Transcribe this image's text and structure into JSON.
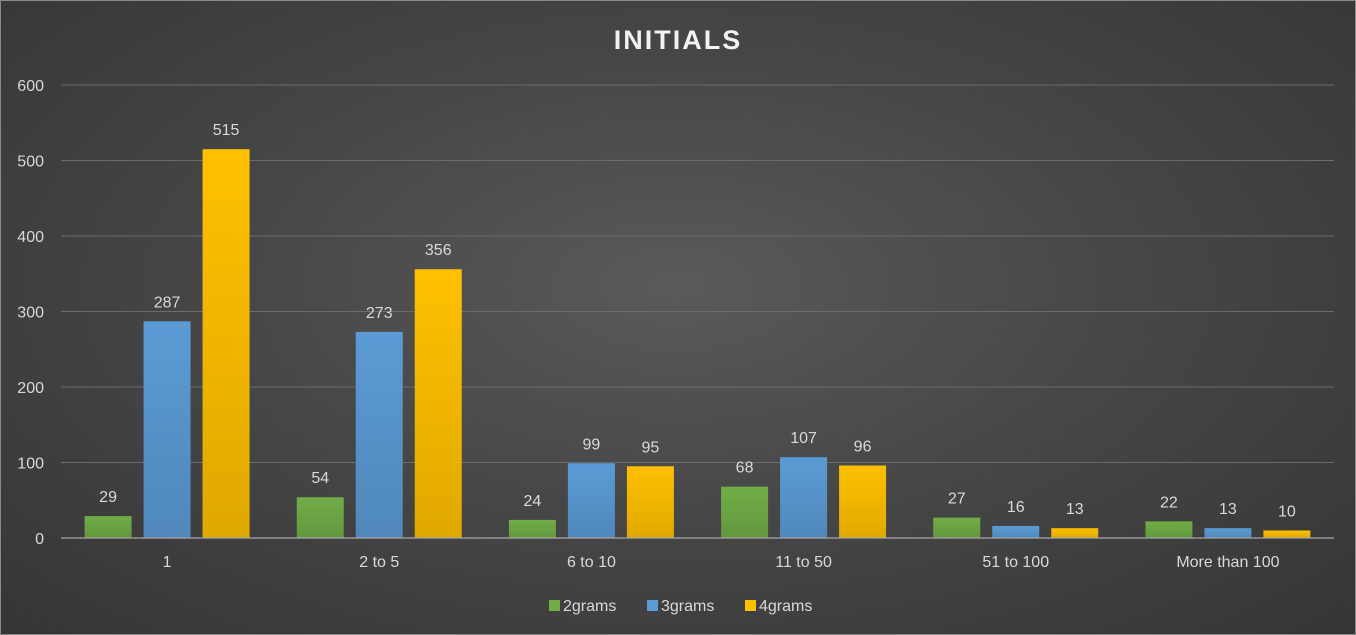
{
  "chart_data": {
    "type": "bar",
    "title": "INITIALS",
    "categories": [
      "1",
      "2 to 5",
      "6 to 10",
      "11 to 50",
      "51 to 100",
      "More than 100"
    ],
    "series": [
      {
        "name": "2grams",
        "values": [
          29,
          54,
          24,
          68,
          27,
          22
        ],
        "color": "#70ad47"
      },
      {
        "name": "3grams",
        "values": [
          287,
          273,
          99,
          107,
          16,
          13
        ],
        "color": "#5b9bd5"
      },
      {
        "name": "4grams",
        "values": [
          515,
          356,
          95,
          96,
          13,
          10
        ],
        "color": "#ffc000"
      }
    ],
    "ylim": [
      0,
      600
    ],
    "yticks": [
      0,
      100,
      200,
      300,
      400,
      500,
      600
    ],
    "xlabel": "",
    "ylabel": "",
    "grid": true,
    "legend_position": "bottom"
  }
}
